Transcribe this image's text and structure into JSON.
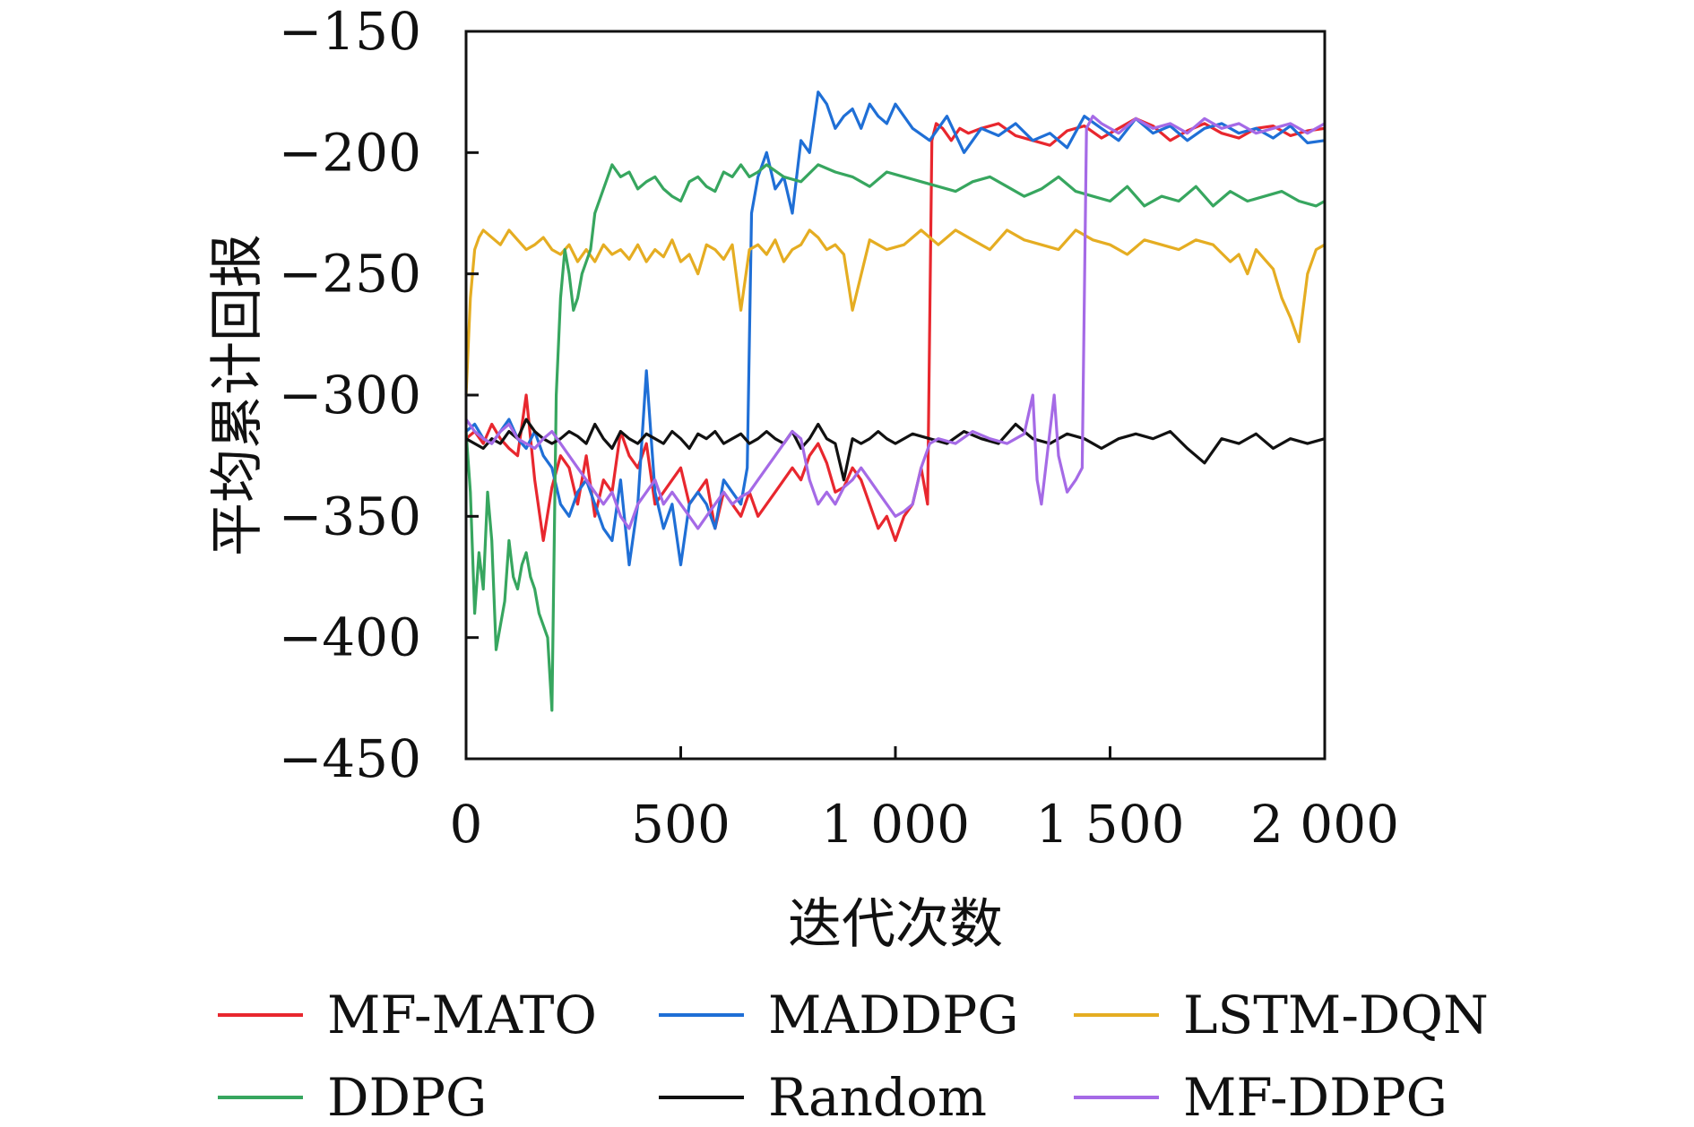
{
  "chart_data": {
    "type": "line",
    "title": "",
    "xlabel": "迭代次数",
    "ylabel": "平均累计回报",
    "xlim": [
      0,
      2000
    ],
    "ylim": [
      -450,
      -150
    ],
    "xticks": [
      0,
      500,
      1000,
      1500,
      2000
    ],
    "xtick_labels": [
      "0",
      "500",
      "1 000",
      "1 500",
      "2 000"
    ],
    "yticks": [
      -450,
      -400,
      -350,
      -300,
      -250,
      -200,
      -150
    ],
    "ytick_labels": [
      "−450",
      "−400",
      "−350",
      "−300",
      "−250",
      "−200",
      "−150"
    ],
    "grid": false,
    "legend_position": "bottom",
    "series": [
      {
        "name": "MF-MATO",
        "color": "#e8272e",
        "x": [
          0,
          20,
          40,
          60,
          80,
          100,
          120,
          140,
          160,
          180,
          200,
          220,
          240,
          260,
          280,
          300,
          320,
          340,
          360,
          380,
          400,
          420,
          440,
          460,
          480,
          500,
          520,
          540,
          560,
          580,
          600,
          620,
          640,
          660,
          680,
          700,
          720,
          740,
          760,
          780,
          800,
          820,
          840,
          860,
          880,
          900,
          920,
          940,
          960,
          980,
          1000,
          1020,
          1040,
          1060,
          1075,
          1085,
          1095,
          1110,
          1130,
          1150,
          1170,
          1200,
          1240,
          1280,
          1320,
          1360,
          1400,
          1440,
          1480,
          1520,
          1560,
          1600,
          1640,
          1680,
          1720,
          1760,
          1800,
          1840,
          1880,
          1920,
          1960,
          2000
        ],
        "y": [
          -318,
          -315,
          -320,
          -312,
          -318,
          -322,
          -325,
          -300,
          -335,
          -360,
          -338,
          -325,
          -330,
          -345,
          -325,
          -350,
          -335,
          -340,
          -315,
          -325,
          -330,
          -320,
          -345,
          -340,
          -335,
          -330,
          -345,
          -340,
          -335,
          -355,
          -340,
          -345,
          -350,
          -340,
          -350,
          -345,
          -340,
          -335,
          -330,
          -335,
          -325,
          -320,
          -328,
          -340,
          -338,
          -330,
          -335,
          -345,
          -355,
          -350,
          -360,
          -350,
          -345,
          -330,
          -345,
          -195,
          -188,
          -190,
          -195,
          -190,
          -192,
          -190,
          -188,
          -193,
          -195,
          -197,
          -191,
          -189,
          -194,
          -190,
          -186,
          -189,
          -195,
          -191,
          -188,
          -192,
          -194,
          -190,
          -189,
          -193,
          -191,
          -190
        ]
      },
      {
        "name": "MADDPG",
        "color": "#1f6fd6",
        "x": [
          0,
          20,
          40,
          60,
          80,
          100,
          120,
          140,
          160,
          180,
          200,
          220,
          240,
          260,
          280,
          300,
          320,
          340,
          360,
          380,
          400,
          420,
          440,
          460,
          480,
          500,
          520,
          540,
          560,
          580,
          600,
          620,
          640,
          655,
          665,
          680,
          700,
          720,
          740,
          760,
          780,
          800,
          820,
          840,
          860,
          880,
          900,
          920,
          940,
          960,
          980,
          1000,
          1040,
          1080,
          1120,
          1160,
          1200,
          1240,
          1280,
          1320,
          1360,
          1400,
          1440,
          1480,
          1520,
          1560,
          1600,
          1640,
          1680,
          1720,
          1760,
          1800,
          1840,
          1880,
          1920,
          1960,
          2000
        ],
        "y": [
          -315,
          -312,
          -318,
          -320,
          -315,
          -310,
          -318,
          -322,
          -315,
          -325,
          -330,
          -345,
          -350,
          -340,
          -335,
          -345,
          -355,
          -360,
          -335,
          -370,
          -345,
          -290,
          -340,
          -355,
          -345,
          -370,
          -345,
          -340,
          -345,
          -355,
          -335,
          -340,
          -345,
          -330,
          -225,
          -210,
          -200,
          -215,
          -210,
          -225,
          -195,
          -200,
          -175,
          -180,
          -190,
          -185,
          -182,
          -190,
          -180,
          -185,
          -188,
          -180,
          -190,
          -195,
          -185,
          -200,
          -190,
          -193,
          -188,
          -195,
          -192,
          -198,
          -185,
          -190,
          -195,
          -186,
          -192,
          -189,
          -195,
          -190,
          -188,
          -192,
          -190,
          -194,
          -189,
          -196,
          -195
        ]
      },
      {
        "name": "LSTM-DQN",
        "color": "#e5ad22",
        "x": [
          0,
          10,
          20,
          30,
          40,
          60,
          80,
          100,
          120,
          140,
          160,
          180,
          200,
          220,
          240,
          260,
          280,
          300,
          320,
          340,
          360,
          380,
          400,
          420,
          440,
          460,
          480,
          500,
          520,
          540,
          560,
          580,
          600,
          620,
          640,
          660,
          680,
          700,
          720,
          740,
          760,
          780,
          800,
          820,
          840,
          860,
          880,
          900,
          940,
          980,
          1020,
          1060,
          1100,
          1140,
          1180,
          1220,
          1260,
          1300,
          1340,
          1380,
          1420,
          1460,
          1500,
          1540,
          1580,
          1620,
          1660,
          1700,
          1740,
          1780,
          1800,
          1820,
          1840,
          1860,
          1880,
          1900,
          1920,
          1940,
          1960,
          1980,
          2000
        ],
        "y": [
          -300,
          -260,
          -240,
          -235,
          -232,
          -235,
          -238,
          -232,
          -236,
          -240,
          -238,
          -235,
          -240,
          -242,
          -238,
          -245,
          -240,
          -245,
          -238,
          -242,
          -240,
          -244,
          -238,
          -245,
          -240,
          -243,
          -236,
          -245,
          -242,
          -250,
          -238,
          -240,
          -244,
          -238,
          -265,
          -240,
          -238,
          -242,
          -236,
          -245,
          -240,
          -238,
          -232,
          -235,
          -240,
          -238,
          -242,
          -265,
          -236,
          -240,
          -238,
          -232,
          -238,
          -232,
          -236,
          -240,
          -232,
          -236,
          -238,
          -240,
          -232,
          -236,
          -238,
          -242,
          -236,
          -238,
          -240,
          -236,
          -238,
          -245,
          -242,
          -250,
          -240,
          -244,
          -248,
          -260,
          -268,
          -278,
          -250,
          -240,
          -238
        ]
      },
      {
        "name": "DDPG",
        "color": "#37a65f",
        "x": [
          0,
          10,
          20,
          30,
          40,
          50,
          60,
          70,
          80,
          90,
          100,
          110,
          120,
          130,
          140,
          150,
          160,
          170,
          180,
          190,
          200,
          210,
          220,
          230,
          240,
          250,
          260,
          270,
          280,
          290,
          300,
          320,
          340,
          360,
          380,
          400,
          420,
          440,
          460,
          480,
          500,
          520,
          540,
          560,
          580,
          600,
          620,
          640,
          660,
          680,
          700,
          740,
          780,
          820,
          860,
          900,
          940,
          980,
          1020,
          1060,
          1100,
          1140,
          1180,
          1220,
          1260,
          1300,
          1340,
          1380,
          1420,
          1460,
          1500,
          1540,
          1580,
          1620,
          1660,
          1700,
          1740,
          1780,
          1820,
          1860,
          1900,
          1940,
          1980,
          2000
        ],
        "y": [
          -315,
          -340,
          -390,
          -365,
          -380,
          -340,
          -360,
          -405,
          -395,
          -385,
          -360,
          -375,
          -380,
          -370,
          -365,
          -375,
          -380,
          -390,
          -395,
          -400,
          -430,
          -300,
          -260,
          -240,
          -250,
          -265,
          -260,
          -250,
          -245,
          -240,
          -225,
          -215,
          -205,
          -210,
          -208,
          -215,
          -212,
          -210,
          -215,
          -218,
          -220,
          -212,
          -210,
          -214,
          -216,
          -208,
          -210,
          -205,
          -210,
          -208,
          -205,
          -210,
          -212,
          -205,
          -208,
          -210,
          -214,
          -208,
          -210,
          -212,
          -214,
          -216,
          -212,
          -210,
          -214,
          -218,
          -215,
          -210,
          -216,
          -218,
          -220,
          -214,
          -222,
          -218,
          -220,
          -214,
          -222,
          -216,
          -220,
          -218,
          -216,
          -220,
          -222,
          -220
        ]
      },
      {
        "name": "Random",
        "color": "#111111",
        "x": [
          0,
          20,
          40,
          60,
          80,
          100,
          120,
          140,
          160,
          180,
          200,
          220,
          240,
          260,
          280,
          300,
          320,
          340,
          360,
          380,
          400,
          420,
          440,
          460,
          480,
          500,
          520,
          540,
          560,
          580,
          600,
          620,
          640,
          660,
          680,
          700,
          720,
          740,
          760,
          780,
          800,
          820,
          840,
          860,
          880,
          900,
          920,
          940,
          960,
          980,
          1000,
          1040,
          1080,
          1120,
          1160,
          1200,
          1240,
          1280,
          1320,
          1360,
          1400,
          1440,
          1480,
          1520,
          1560,
          1600,
          1640,
          1680,
          1720,
          1760,
          1800,
          1840,
          1880,
          1920,
          1960,
          2000
        ],
        "y": [
          -318,
          -320,
          -322,
          -318,
          -320,
          -315,
          -318,
          -310,
          -315,
          -318,
          -320,
          -318,
          -315,
          -317,
          -320,
          -312,
          -318,
          -322,
          -315,
          -318,
          -320,
          -316,
          -318,
          -320,
          -315,
          -318,
          -322,
          -316,
          -318,
          -315,
          -320,
          -318,
          -316,
          -320,
          -318,
          -315,
          -318,
          -320,
          -315,
          -322,
          -318,
          -312,
          -318,
          -320,
          -335,
          -318,
          -320,
          -318,
          -315,
          -318,
          -320,
          -316,
          -318,
          -320,
          -315,
          -318,
          -320,
          -312,
          -318,
          -320,
          -316,
          -318,
          -322,
          -318,
          -316,
          -318,
          -315,
          -322,
          -328,
          -318,
          -320,
          -316,
          -322,
          -318,
          -320,
          -318
        ]
      },
      {
        "name": "MF-DDPG",
        "color": "#a56ae6",
        "x": [
          0,
          20,
          40,
          60,
          80,
          100,
          120,
          140,
          160,
          180,
          200,
          220,
          240,
          260,
          280,
          300,
          320,
          340,
          360,
          380,
          400,
          420,
          440,
          460,
          480,
          500,
          520,
          540,
          560,
          580,
          600,
          620,
          640,
          660,
          680,
          700,
          720,
          740,
          760,
          780,
          800,
          820,
          840,
          860,
          880,
          900,
          920,
          940,
          960,
          980,
          1000,
          1020,
          1040,
          1060,
          1080,
          1100,
          1140,
          1180,
          1220,
          1260,
          1300,
          1320,
          1330,
          1340,
          1350,
          1360,
          1370,
          1380,
          1400,
          1420,
          1435,
          1445,
          1460,
          1480,
          1520,
          1560,
          1600,
          1640,
          1680,
          1720,
          1760,
          1800,
          1840,
          1880,
          1920,
          1960,
          2000
        ],
        "y": [
          -310,
          -315,
          -318,
          -320,
          -315,
          -312,
          -318,
          -320,
          -322,
          -318,
          -315,
          -320,
          -325,
          -330,
          -335,
          -340,
          -345,
          -340,
          -350,
          -355,
          -345,
          -340,
          -335,
          -345,
          -340,
          -345,
          -350,
          -355,
          -350,
          -345,
          -340,
          -345,
          -342,
          -340,
          -335,
          -330,
          -325,
          -320,
          -315,
          -318,
          -335,
          -345,
          -340,
          -345,
          -338,
          -335,
          -330,
          -335,
          -340,
          -345,
          -350,
          -348,
          -345,
          -330,
          -320,
          -318,
          -320,
          -315,
          -318,
          -320,
          -316,
          -300,
          -335,
          -345,
          -330,
          -315,
          -300,
          -325,
          -340,
          -335,
          -330,
          -190,
          -185,
          -188,
          -192,
          -186,
          -190,
          -188,
          -192,
          -186,
          -190,
          -188,
          -192,
          -190,
          -188,
          -192,
          -188
        ]
      }
    ]
  }
}
